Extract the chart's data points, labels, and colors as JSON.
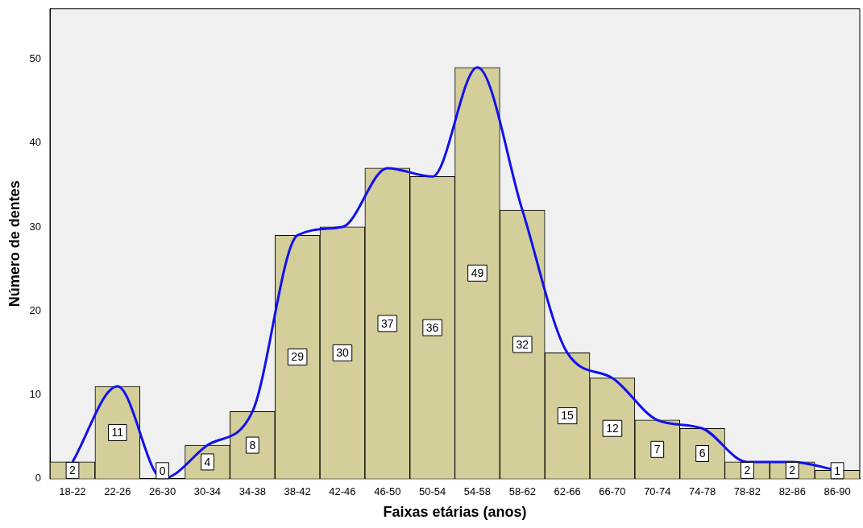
{
  "chart_data": {
    "type": "bar",
    "xlabel": "Faixas etárias (anos)",
    "ylabel": "Número de dentes",
    "categories": [
      "18-22",
      "22-26",
      "26-30",
      "30-34",
      "34-38",
      "38-42",
      "42-46",
      "46-50",
      "50-54",
      "54-58",
      "58-62",
      "62-66",
      "66-70",
      "70-74",
      "74-78",
      "78-82",
      "82-86",
      "86-90"
    ],
    "series": [
      {
        "color": "#d3ce9a",
        "values": [
          2,
          11,
          0,
          4,
          8,
          29,
          30,
          37,
          36,
          49,
          32,
          15,
          12,
          7,
          6,
          2,
          2,
          1
        ],
        "value_labels": [
          "2",
          "11",
          "0",
          "4",
          "8",
          "29",
          "30",
          "37",
          "36",
          "49",
          "32",
          "15",
          "12",
          "7",
          "6",
          "2",
          "2",
          "1"
        ]
      },
      {
        "type": "line",
        "color": "#1010f0",
        "values": [
          2,
          11,
          0,
          4,
          8,
          29,
          30,
          37,
          36,
          49,
          32,
          15,
          12,
          7,
          6,
          2,
          2,
          1
        ]
      }
    ],
    "ylim": [
      0,
      56
    ],
    "yticks": [
      0,
      10,
      20,
      30,
      40,
      50
    ],
    "grid": false,
    "legend": false,
    "marker": "none"
  }
}
